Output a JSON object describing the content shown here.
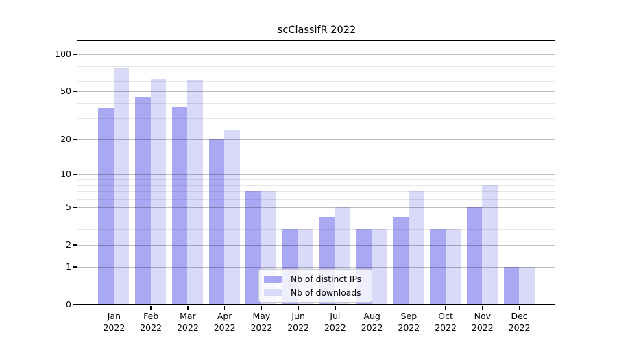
{
  "title": "scClassifR 2022",
  "chart_data": {
    "type": "bar",
    "title": "scClassifR 2022",
    "categories": [
      "Jan",
      "Feb",
      "Mar",
      "Apr",
      "May",
      "Jun",
      "Jul",
      "Aug",
      "Sep",
      "Oct",
      "Nov",
      "Dec"
    ],
    "category_year": "2022",
    "series": [
      {
        "name": "Nb of distinct IPs",
        "color": "#a9a9f3",
        "values": [
          36,
          44,
          37,
          20,
          7,
          3,
          4,
          3,
          4,
          3,
          5,
          1
        ]
      },
      {
        "name": "Nb of downloads",
        "color": "#d9d9f8",
        "values": [
          77,
          63,
          61,
          24,
          7,
          3,
          5,
          3,
          7,
          3,
          8,
          1
        ]
      }
    ],
    "yscale": "log1p",
    "ylim": [
      0,
      126
    ],
    "yticks": [
      0,
      1,
      2,
      5,
      10,
      20,
      50,
      100
    ],
    "yticks_minor": [
      3,
      4,
      6,
      7,
      8,
      9,
      30,
      40,
      60,
      70,
      80,
      90
    ],
    "grid": "horizontal",
    "grid_major_color": "#bfbfbf",
    "grid_minor_color": "#e8e8e8",
    "axis_color": "#000000",
    "background_color": "#ffffff",
    "legend_position": "lower center"
  }
}
